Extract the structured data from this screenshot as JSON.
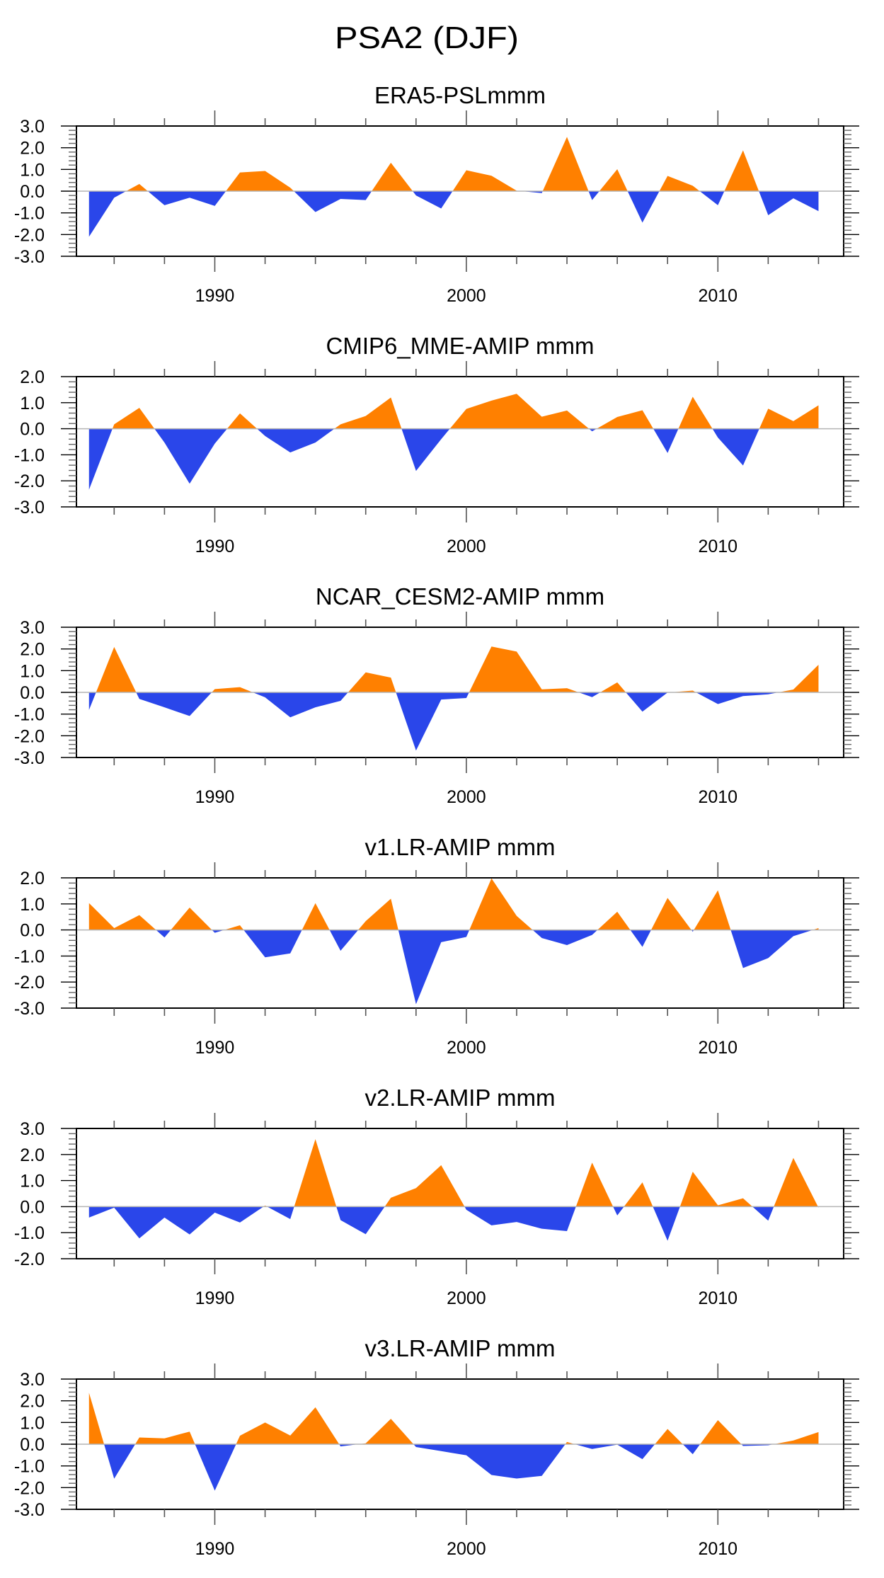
{
  "figure_title": "PSA2 (DJF)",
  "colors": {
    "positive": "#ff8000",
    "negative": "#2a46ea",
    "zero_line": "#b4b4b4",
    "axis": "#000000"
  },
  "chart_data": [
    {
      "type": "area",
      "title": "ERA5-PSLmmm",
      "xlabel": "",
      "ylabel": "",
      "xlim": [
        1984.5,
        2015
      ],
      "ylim": [
        -3,
        3
      ],
      "x_ticks": [
        1990,
        2000,
        2010
      ],
      "x_tick_labels": [
        "1990",
        "2000",
        "2010"
      ],
      "y_ticks": [
        -3,
        -2,
        -1,
        0,
        1,
        2,
        3
      ],
      "y_tick_labels": [
        "-3.0",
        "-2.0",
        "-1.0",
        "0.0",
        "1.0",
        "2.0",
        "3.0"
      ],
      "fill_above_zero": "orange",
      "fill_below_zero": "blue",
      "x": [
        1985,
        1986,
        1987,
        1988,
        1989,
        1990,
        1991,
        1992,
        1993,
        1994,
        1995,
        1996,
        1997,
        1998,
        1999,
        2000,
        2001,
        2002,
        2003,
        2004,
        2005,
        2006,
        2007,
        2008,
        2009,
        2010,
        2011,
        2012,
        2013,
        2014
      ],
      "values": [
        -2.1,
        -0.3,
        0.33,
        -0.65,
        -0.3,
        -0.68,
        0.86,
        0.93,
        0.16,
        -0.96,
        -0.36,
        -0.41,
        1.31,
        -0.2,
        -0.8,
        0.96,
        0.71,
        0.02,
        -0.09,
        2.5,
        -0.41,
        1.01,
        -1.45,
        0.7,
        0.25,
        -0.65,
        1.88,
        -1.11,
        -0.33,
        -0.92
      ]
    },
    {
      "type": "area",
      "title": "CMIP6_MME-AMIP  mmm",
      "xlabel": "",
      "ylabel": "",
      "xlim": [
        1984.5,
        2015
      ],
      "ylim": [
        -3,
        2
      ],
      "x_ticks": [
        1990,
        2000,
        2010
      ],
      "x_tick_labels": [
        "1990",
        "2000",
        "2010"
      ],
      "y_ticks": [
        -3,
        -2,
        -1,
        0,
        1,
        2
      ],
      "y_tick_labels": [
        "-3.0",
        "-2.0",
        "-1.0",
        "0.0",
        "1.0",
        "2.0"
      ],
      "fill_above_zero": "orange",
      "fill_below_zero": "blue",
      "x": [
        1985,
        1986,
        1987,
        1988,
        1989,
        1990,
        1991,
        1992,
        1993,
        1994,
        1995,
        1996,
        1997,
        1998,
        1999,
        2000,
        2001,
        2002,
        2003,
        2004,
        2005,
        2006,
        2007,
        2008,
        2009,
        2010,
        2011,
        2012,
        2013,
        2014
      ],
      "values": [
        -2.34,
        0.17,
        0.8,
        -0.53,
        -2.11,
        -0.57,
        0.59,
        -0.28,
        -0.91,
        -0.53,
        0.17,
        0.49,
        1.2,
        -1.62,
        -0.4,
        0.76,
        1.08,
        1.34,
        0.46,
        0.7,
        -0.1,
        0.45,
        0.71,
        -0.93,
        1.23,
        -0.34,
        -1.41,
        0.77,
        0.29,
        0.9
      ]
    },
    {
      "type": "area",
      "title": "NCAR_CESM2-AMIP  mmm",
      "xlabel": "",
      "ylabel": "",
      "xlim": [
        1984.5,
        2015
      ],
      "ylim": [
        -3,
        3
      ],
      "x_ticks": [
        1990,
        2000,
        2010
      ],
      "x_tick_labels": [
        "1990",
        "2000",
        "2010"
      ],
      "y_ticks": [
        -3,
        -2,
        -1,
        0,
        1,
        2,
        3
      ],
      "y_tick_labels": [
        "-3.0",
        "-2.0",
        "-1.0",
        "0.0",
        "1.0",
        "2.0",
        "3.0"
      ],
      "fill_above_zero": "orange",
      "fill_below_zero": "blue",
      "x": [
        1985,
        1986,
        1987,
        1988,
        1989,
        1990,
        1991,
        1992,
        1993,
        1994,
        1995,
        1996,
        1997,
        1998,
        1999,
        2000,
        2001,
        2002,
        2003,
        2004,
        2005,
        2006,
        2007,
        2008,
        2009,
        2010,
        2011,
        2012,
        2013,
        2014
      ],
      "values": [
        -0.81,
        2.09,
        -0.3,
        -0.69,
        -1.09,
        0.15,
        0.24,
        -0.23,
        -1.15,
        -0.69,
        -0.39,
        0.92,
        0.68,
        -2.68,
        -0.33,
        -0.26,
        2.11,
        1.88,
        0.14,
        0.19,
        -0.22,
        0.46,
        -0.89,
        -0.01,
        0.08,
        -0.54,
        -0.17,
        -0.09,
        0.13,
        1.27
      ]
    },
    {
      "type": "area",
      "title": "v1.LR-AMIP  mmm",
      "xlabel": "",
      "ylabel": "",
      "xlim": [
        1984.5,
        2015
      ],
      "ylim": [
        -3,
        2
      ],
      "x_ticks": [
        1990,
        2000,
        2010
      ],
      "x_tick_labels": [
        "1990",
        "2000",
        "2010"
      ],
      "y_ticks": [
        -3,
        -2,
        -1,
        0,
        1,
        2
      ],
      "y_tick_labels": [
        "-3.0",
        "-2.0",
        "-1.0",
        "0.0",
        "1.0",
        "2.0"
      ],
      "fill_above_zero": "orange",
      "fill_below_zero": "blue",
      "x": [
        1985,
        1986,
        1987,
        1988,
        1989,
        1990,
        1991,
        1992,
        1993,
        1994,
        1995,
        1996,
        1997,
        1998,
        1999,
        2000,
        2001,
        2002,
        2003,
        2004,
        2005,
        2006,
        2007,
        2008,
        2009,
        2010,
        2011,
        2012,
        2013,
        2014
      ],
      "values": [
        1.03,
        0.07,
        0.57,
        -0.29,
        0.86,
        -0.11,
        0.18,
        -1.05,
        -0.9,
        1.03,
        -0.8,
        0.34,
        1.2,
        -2.85,
        -0.47,
        -0.27,
        1.98,
        0.54,
        -0.31,
        -0.58,
        -0.19,
        0.7,
        -0.65,
        1.23,
        -0.07,
        1.52,
        -1.46,
        -1.08,
        -0.24,
        0.07
      ]
    },
    {
      "type": "area",
      "title": "v2.LR-AMIP  mmm",
      "xlabel": "",
      "ylabel": "",
      "xlim": [
        1984.5,
        2015
      ],
      "ylim": [
        -2,
        3
      ],
      "x_ticks": [
        1990,
        2000,
        2010
      ],
      "x_tick_labels": [
        "1990",
        "2000",
        "2010"
      ],
      "y_ticks": [
        -2,
        -1,
        0,
        1,
        2,
        3
      ],
      "y_tick_labels": [
        "-2.0",
        "-1.0",
        "0.0",
        "1.0",
        "2.0",
        "3.0"
      ],
      "fill_above_zero": "orange",
      "fill_below_zero": "blue",
      "x": [
        1985,
        1986,
        1987,
        1988,
        1989,
        1990,
        1991,
        1992,
        1993,
        1994,
        1995,
        1996,
        1997,
        1998,
        1999,
        2000,
        2001,
        2002,
        2003,
        2004,
        2005,
        2006,
        2007,
        2008,
        2009,
        2010,
        2011,
        2012,
        2013,
        2014
      ],
      "values": [
        -0.42,
        -0.04,
        -1.22,
        -0.42,
        -1.07,
        -0.23,
        -0.61,
        0.04,
        -0.48,
        2.59,
        -0.52,
        -1.06,
        0.34,
        0.71,
        1.59,
        -0.12,
        -0.72,
        -0.59,
        -0.85,
        -0.94,
        1.69,
        -0.34,
        0.93,
        -1.31,
        1.34,
        0.05,
        0.32,
        -0.54,
        1.87,
        -0.04
      ]
    },
    {
      "type": "area",
      "title": "v3.LR-AMIP  mmm",
      "xlabel": "",
      "ylabel": "",
      "xlim": [
        1984.5,
        2015
      ],
      "ylim": [
        -3,
        3
      ],
      "x_ticks": [
        1990,
        2000,
        2010
      ],
      "x_tick_labels": [
        "1990",
        "2000",
        "2010"
      ],
      "y_ticks": [
        -3,
        -2,
        -1,
        0,
        1,
        2,
        3
      ],
      "y_tick_labels": [
        "-3.0",
        "-2.0",
        "-1.0",
        "0.0",
        "1.0",
        "2.0",
        "3.0"
      ],
      "fill_above_zero": "orange",
      "fill_below_zero": "blue",
      "x": [
        1985,
        1986,
        1987,
        1988,
        1989,
        1990,
        1991,
        1992,
        1993,
        1994,
        1995,
        1996,
        1997,
        1998,
        1999,
        2000,
        2001,
        2002,
        2003,
        2004,
        2005,
        2006,
        2007,
        2008,
        2009,
        2010,
        2011,
        2012,
        2013,
        2014
      ],
      "values": [
        2.37,
        -1.59,
        0.31,
        0.27,
        0.58,
        -2.14,
        0.39,
        1.0,
        0.4,
        1.7,
        -0.1,
        0.04,
        1.17,
        -0.13,
        -0.32,
        -0.51,
        -1.42,
        -1.58,
        -1.46,
        0.1,
        -0.22,
        -0.02,
        -0.69,
        0.7,
        -0.46,
        1.11,
        -0.08,
        -0.05,
        0.17,
        0.56
      ]
    }
  ]
}
